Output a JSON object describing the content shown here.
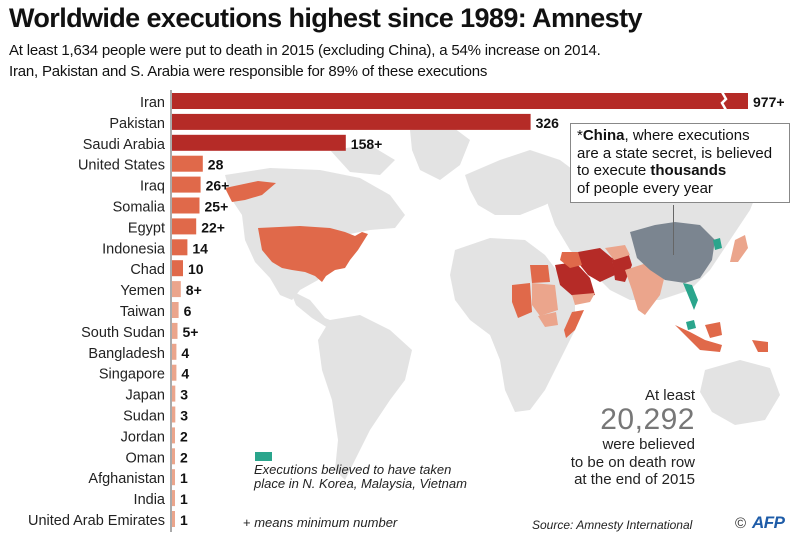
{
  "header": {
    "title": "Worldwide executions highest since 1989: Amnesty",
    "subtitle_line1": "At least 1,634 people were put to death in 2015 (excluding China), a 54% increase on 2014.",
    "subtitle_line2": "Iran, Pakistan and S. Arabia were responsible for 89% of these executions"
  },
  "colors": {
    "dark_red": "#b52b27",
    "mid_orange": "#e0694a",
    "light_salmon": "#eba58c",
    "china_gray": "#7b8590",
    "teal": "#2aa58c",
    "land_gray": "#e3e3e3"
  },
  "chart_data": {
    "type": "bar",
    "orientation": "horizontal",
    "title": "Worldwide executions highest since 1989: Amnesty",
    "xlabel": "",
    "ylabel": "",
    "axis_break": "Iran bar is broken (truncated)",
    "categories": [
      "Iran",
      "Pakistan",
      "Saudi Arabia",
      "United States",
      "Iraq",
      "Somalia",
      "Egypt",
      "Indonesia",
      "Chad",
      "Yemen",
      "Taiwan",
      "South Sudan",
      "Bangladesh",
      "Singapore",
      "Japan",
      "Sudan",
      "Jordan",
      "Oman",
      "Afghanistan",
      "India",
      "United Arab Emirates"
    ],
    "values": [
      977,
      326,
      158,
      28,
      26,
      25,
      22,
      14,
      10,
      8,
      6,
      5,
      4,
      4,
      3,
      3,
      2,
      2,
      1,
      1,
      1
    ],
    "value_labels": [
      "977+",
      "326",
      "158+",
      "28",
      "26+",
      "25+",
      "22+",
      "14",
      "10",
      "8+",
      "6",
      "5+",
      "4",
      "4",
      "3",
      "3",
      "2",
      "2",
      "1",
      "1",
      "1"
    ],
    "color_tiers": [
      "dark_red",
      "dark_red",
      "dark_red",
      "mid_orange",
      "mid_orange",
      "mid_orange",
      "mid_orange",
      "mid_orange",
      "mid_orange",
      "light_salmon",
      "light_salmon",
      "light_salmon",
      "light_salmon",
      "light_salmon",
      "light_salmon",
      "light_salmon",
      "light_salmon",
      "light_salmon",
      "light_salmon",
      "light_salmon",
      "light_salmon"
    ],
    "legend": [
      {
        "label": "Executions believed to have taken place in N. Korea, Malaysia, Vietnam",
        "color": "teal"
      }
    ],
    "annotations": [
      "*China, where executions are a state secret, is believed to execute thousands of people every year",
      "At least 20,292 were believed to be on death row at the end of 2015",
      "+ means minimum number"
    ]
  },
  "china_note": {
    "star": "*",
    "country": "China",
    "text1": ", where executions",
    "text2": "are a state secret, is believed",
    "text3": "to execute ",
    "emphasis": "thousands",
    "text4": "of people every year"
  },
  "death_row": {
    "lead": "At least",
    "number": "20,292",
    "line1": "were believed",
    "line2": "to be on death row",
    "line3": "at the end of 2015"
  },
  "legend": {
    "line1": "Executions believed to have taken",
    "line2": "place in N. Korea, Malaysia, Vietnam"
  },
  "notes": {
    "plus_symbol": "+",
    "plus_text": " means minimum number",
    "source": "Source: Amnesty International",
    "copyright": "©",
    "brand": "AFP"
  }
}
